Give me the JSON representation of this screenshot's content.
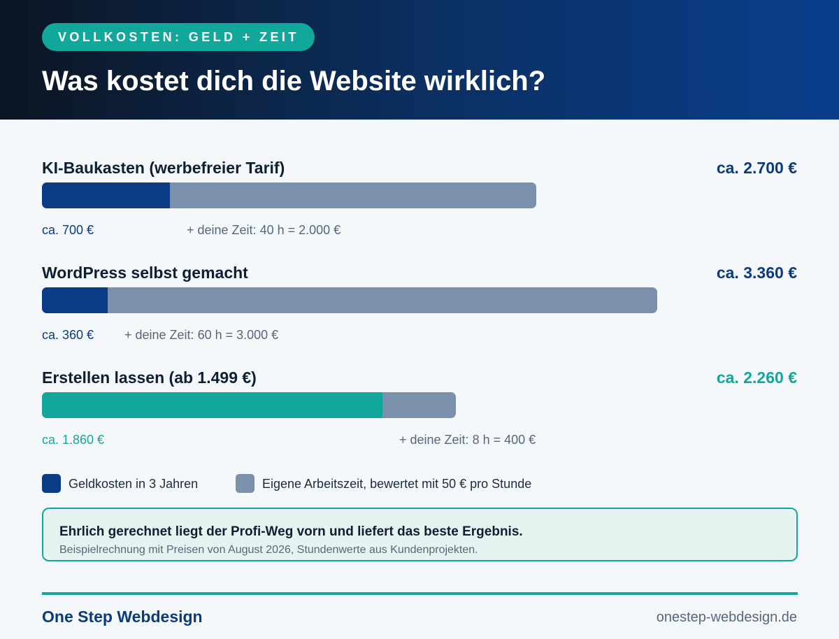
{
  "header": {
    "badge": "VOLLKOSTEN: GELD + ZEIT",
    "title": "Was kostet dich die Website wirklich?"
  },
  "colors": {
    "money": "#0b3b86",
    "time": "#7b91ab",
    "accent": "#12a79b",
    "header_start": "#0c1522",
    "header_end": "#0a3e8c"
  },
  "chart_data": {
    "type": "bar",
    "orientation": "horizontal",
    "stacked": true,
    "unit": "€",
    "xlim": [
      0,
      3700
    ],
    "grid": false,
    "legend_position": "bottom",
    "categories": [
      "KI-Baukasten (werbefreier Tarif)",
      "WordPress selbst gemacht",
      "Erstellen lassen (ab 1.499 €)"
    ],
    "series": [
      {
        "name": "Geldkosten in 3 Jahren",
        "values": [
          700,
          360,
          1860
        ]
      },
      {
        "name": "Eigene Arbeitszeit, bewertet mit 50 € pro Stunde",
        "values": [
          2000,
          3000,
          400
        ]
      }
    ],
    "totals": [
      2700,
      3360,
      2260
    ],
    "rows": [
      {
        "label": "KI-Baukasten (werbefreier Tarif)",
        "total_label": "ca. 2.700 €",
        "money": 700,
        "money_label": "ca. 700 €",
        "time": 2000,
        "time_label": "+ deine Zeit: 40 h = 2.000 €",
        "highlight": false
      },
      {
        "label": "WordPress selbst gemacht",
        "total_label": "ca. 3.360 €",
        "money": 360,
        "money_label": "ca. 360 €",
        "time": 3000,
        "time_label": "+ deine Zeit: 60 h = 3.000 €",
        "highlight": false
      },
      {
        "label": "Erstellen lassen (ab 1.499 €)",
        "total_label": "ca. 2.260 €",
        "money": 1860,
        "money_label": "ca. 1.860 €",
        "time": 400,
        "time_label": "+ deine Zeit: 8 h = 400 €",
        "highlight": true
      }
    ],
    "legend": [
      {
        "label": "Geldkosten in 3 Jahren",
        "color": "#0b3b86"
      },
      {
        "label": "Eigene Arbeitszeit, bewertet mit 50 € pro Stunde",
        "color": "#7b91ab"
      }
    ]
  },
  "note": {
    "title": "Ehrlich gerechnet liegt der Profi-Weg vorn und liefert das beste Ergebnis.",
    "subtitle": "Beispielrechnung mit Preisen von August 2026, Stundenwerte aus Kundenprojekten."
  },
  "footer": {
    "brand": "One Step Webdesign",
    "url": "onestep-webdesign.de"
  }
}
